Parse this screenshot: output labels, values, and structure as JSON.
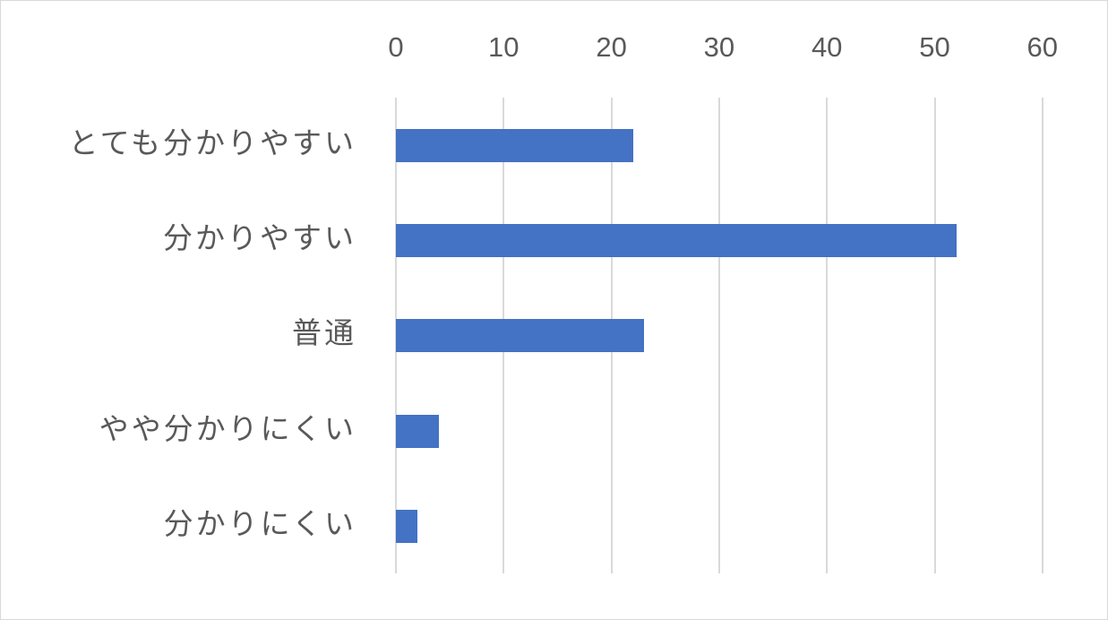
{
  "chart_data": {
    "type": "bar",
    "orientation": "horizontal",
    "title": "",
    "xlabel": "",
    "ylabel": "",
    "categories": [
      "とても分かりやすい",
      "分かりやすい",
      "普通",
      "やや分かりにくい",
      "分かりにくい"
    ],
    "values": [
      22,
      52,
      23,
      4,
      2
    ],
    "xlim": [
      0,
      60
    ],
    "x_ticks": [
      "0",
      "10",
      "20",
      "30",
      "40",
      "50",
      "60"
    ],
    "x_axis_position": "top",
    "grid": true,
    "legend": null,
    "bar_color": "#4472c4",
    "gridline_color": "#d9d9d9",
    "text_color": "#595959"
  }
}
